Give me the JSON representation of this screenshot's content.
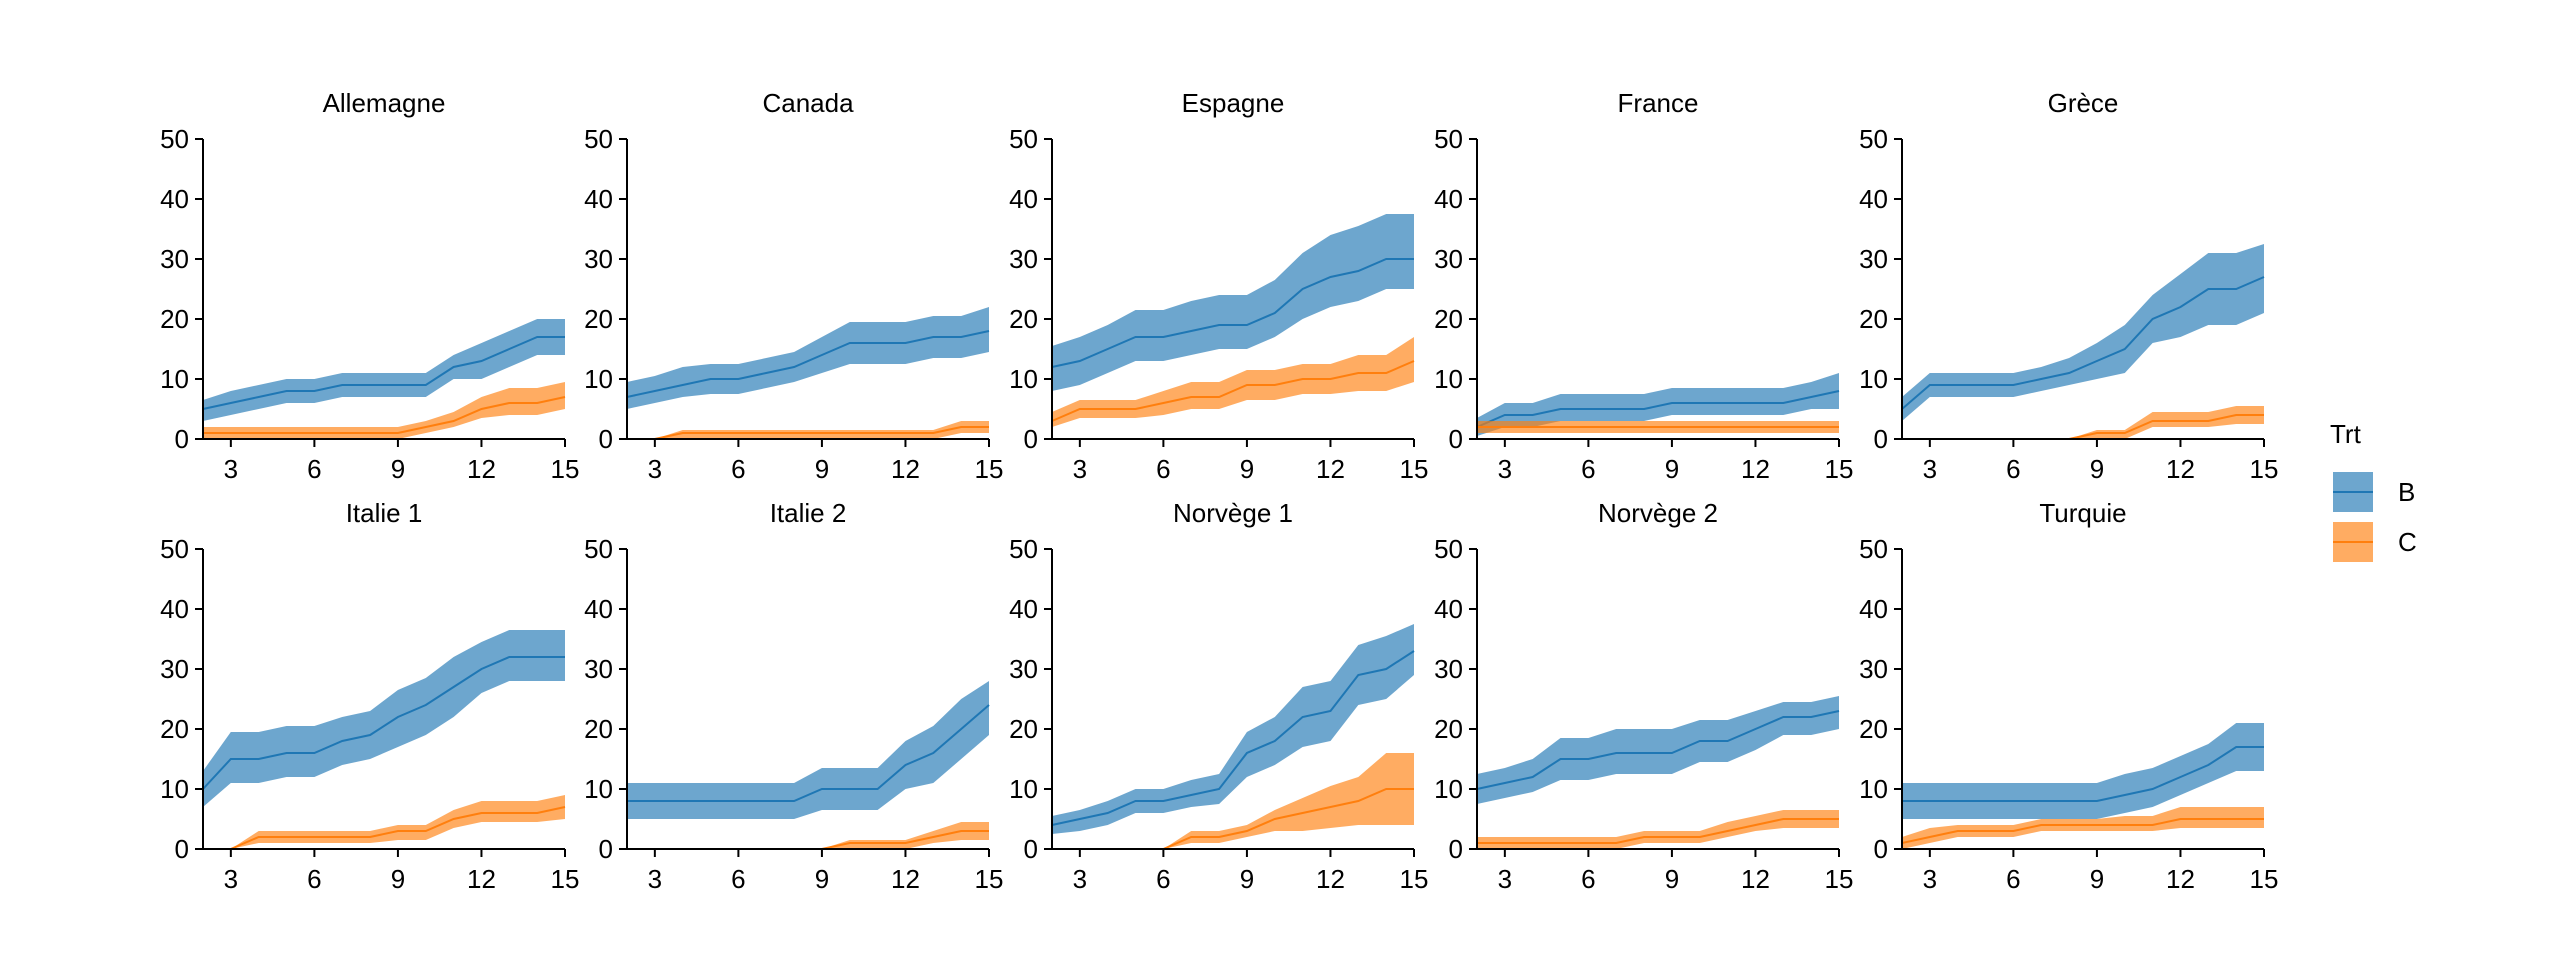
{
  "colors": {
    "B": "#1f77b4",
    "C": "#ff7f0e",
    "axis": "#000000"
  },
  "chart_data": {
    "type": "area",
    "legend": {
      "title": "Trt",
      "placement": "right",
      "entries": [
        "B",
        "C"
      ]
    },
    "xlim": [
      2,
      15
    ],
    "ylim": [
      0,
      50
    ],
    "x_ticks": [
      3,
      6,
      9,
      12,
      15
    ],
    "y_ticks": [
      0,
      10,
      20,
      30,
      40,
      50
    ],
    "grid": false,
    "x": [
      2,
      3,
      4,
      5,
      6,
      7,
      8,
      9,
      10,
      11,
      12,
      13,
      14,
      15
    ],
    "panels": [
      {
        "title": "Allemagne",
        "series": [
          {
            "name": "B",
            "mean": [
              5,
              6,
              7,
              8,
              8,
              9,
              9,
              9,
              9,
              12,
              13,
              15,
              17,
              17
            ],
            "low": [
              3,
              4,
              5,
              6,
              6,
              7,
              7,
              7,
              7,
              10,
              10,
              12,
              14,
              14
            ],
            "high": [
              6.5,
              8,
              9,
              10,
              10,
              11,
              11,
              11,
              11,
              14,
              16,
              18,
              20,
              20
            ]
          },
          {
            "name": "C",
            "mean": [
              1,
              1,
              1,
              1,
              1,
              1,
              1,
              1,
              2,
              3,
              5,
              6,
              6,
              7
            ],
            "low": [
              0,
              0,
              0,
              0,
              0,
              0,
              0,
              0,
              1,
              2,
              3.5,
              4,
              4,
              5
            ],
            "high": [
              2,
              2,
              2,
              2,
              2,
              2,
              2,
              2,
              3,
              4.5,
              7,
              8.5,
              8.5,
              9.5
            ]
          }
        ]
      },
      {
        "title": "Canada",
        "series": [
          {
            "name": "B",
            "mean": [
              7,
              8,
              9,
              10,
              10,
              11,
              12,
              14,
              16,
              16,
              16,
              17,
              17,
              18
            ],
            "low": [
              5,
              6,
              7,
              7.5,
              7.5,
              8.5,
              9.5,
              11,
              12.5,
              12.5,
              12.5,
              13.5,
              13.5,
              14.5
            ],
            "high": [
              9.5,
              10.5,
              12,
              12.5,
              12.5,
              13.5,
              14.5,
              17,
              19.5,
              19.5,
              19.5,
              20.5,
              20.5,
              22
            ]
          },
          {
            "name": "C",
            "mean": [
              null,
              0,
              1,
              1,
              1,
              1,
              1,
              1,
              1,
              1,
              1,
              1,
              2,
              2
            ],
            "low": [
              null,
              0,
              0,
              0,
              0,
              0,
              0,
              0,
              0,
              0,
              0,
              0,
              1,
              1
            ],
            "high": [
              null,
              0,
              1.5,
              1.5,
              1.5,
              1.5,
              1.5,
              1.5,
              1.5,
              1.5,
              1.5,
              1.5,
              3,
              3
            ]
          }
        ]
      },
      {
        "title": "Espagne",
        "series": [
          {
            "name": "B",
            "mean": [
              12,
              13,
              15,
              17,
              17,
              18,
              19,
              19,
              21,
              25,
              27,
              28,
              30,
              30
            ],
            "low": [
              8,
              9,
              11,
              13,
              13,
              14,
              15,
              15,
              17,
              20,
              22,
              23,
              25,
              25
            ],
            "high": [
              15.5,
              17,
              19,
              21.5,
              21.5,
              23,
              24,
              24,
              26.5,
              31,
              34,
              35.5,
              37.5,
              37.5
            ]
          },
          {
            "name": "C",
            "mean": [
              3,
              5,
              5,
              5,
              6,
              7,
              7,
              9,
              9,
              10,
              10,
              11,
              11,
              13
            ],
            "low": [
              2,
              3.5,
              3.5,
              3.5,
              4,
              5,
              5,
              6.5,
              6.5,
              7.5,
              7.5,
              8,
              8,
              9.5
            ],
            "high": [
              4.5,
              6.5,
              6.5,
              6.5,
              8,
              9.5,
              9.5,
              11.5,
              11.5,
              12.5,
              12.5,
              14,
              14,
              17
            ]
          }
        ]
      },
      {
        "title": "France",
        "series": [
          {
            "name": "B",
            "mean": [
              2,
              4,
              4,
              5,
              5,
              5,
              5,
              6,
              6,
              6,
              6,
              6,
              7,
              8
            ],
            "low": [
              0.5,
              2,
              2,
              3,
              3,
              3,
              3,
              4,
              4,
              4,
              4,
              4,
              5,
              5
            ],
            "high": [
              3.5,
              6,
              6,
              7.5,
              7.5,
              7.5,
              7.5,
              8.5,
              8.5,
              8.5,
              8.5,
              8.5,
              9.5,
              11
            ]
          },
          {
            "name": "C",
            "mean": [
              2,
              2,
              2,
              2,
              2,
              2,
              2,
              2,
              2,
              2,
              2,
              2,
              2,
              2
            ],
            "low": [
              1,
              1,
              1,
              1,
              1,
              1,
              1,
              1,
              1,
              1,
              1,
              1,
              1,
              1
            ],
            "high": [
              3,
              3,
              3,
              3,
              3,
              3,
              3,
              3,
              3,
              3,
              3,
              3,
              3,
              3
            ]
          }
        ]
      },
      {
        "title": "Grèce",
        "series": [
          {
            "name": "B",
            "mean": [
              5,
              9,
              9,
              9,
              9,
              10,
              11,
              13,
              15,
              20,
              22,
              25,
              25,
              27
            ],
            "low": [
              3,
              7,
              7,
              7,
              7,
              8,
              9,
              10,
              11,
              16,
              17,
              19,
              19,
              21
            ],
            "high": [
              7,
              11,
              11,
              11,
              11,
              12,
              13.5,
              16,
              19,
              24,
              27.5,
              31,
              31,
              32.5
            ]
          },
          {
            "name": "C",
            "mean": [
              null,
              null,
              null,
              null,
              null,
              null,
              0,
              1,
              1,
              3,
              3,
              3,
              4,
              4
            ],
            "low": [
              null,
              null,
              null,
              null,
              null,
              null,
              0,
              0,
              0,
              2,
              2,
              2,
              2.5,
              2.5
            ],
            "high": [
              null,
              null,
              null,
              null,
              null,
              null,
              0,
              1.5,
              1.5,
              4.5,
              4.5,
              4.5,
              5.5,
              5.5
            ]
          }
        ]
      },
      {
        "title": "Italie 1",
        "series": [
          {
            "name": "B",
            "mean": [
              10,
              15,
              15,
              16,
              16,
              18,
              19,
              22,
              24,
              27,
              30,
              32,
              32,
              32
            ],
            "low": [
              7,
              11,
              11,
              12,
              12,
              14,
              15,
              17,
              19,
              22,
              26,
              28,
              28,
              28
            ],
            "high": [
              13,
              19.5,
              19.5,
              20.5,
              20.5,
              22,
              23,
              26.5,
              28.5,
              32,
              34.5,
              36.5,
              36.5,
              36.5
            ]
          },
          {
            "name": "C",
            "mean": [
              null,
              0,
              2,
              2,
              2,
              2,
              2,
              3,
              3,
              5,
              6,
              6,
              6,
              7
            ],
            "low": [
              null,
              0,
              1,
              1,
              1,
              1,
              1,
              1.5,
              1.5,
              3.5,
              4.5,
              4.5,
              4.5,
              5
            ],
            "high": [
              null,
              0,
              3,
              3,
              3,
              3,
              3,
              4,
              4,
              6.5,
              8,
              8,
              8,
              9
            ]
          }
        ]
      },
      {
        "title": "Italie 2",
        "series": [
          {
            "name": "B",
            "mean": [
              8,
              8,
              8,
              8,
              8,
              8,
              8,
              10,
              10,
              10,
              14,
              16,
              20,
              24
            ],
            "low": [
              5,
              5,
              5,
              5,
              5,
              5,
              5,
              6.5,
              6.5,
              6.5,
              10,
              11,
              15,
              19
            ],
            "high": [
              11,
              11,
              11,
              11,
              11,
              11,
              11,
              13.5,
              13.5,
              13.5,
              18,
              20.5,
              25,
              28
            ]
          },
          {
            "name": "C",
            "mean": [
              null,
              0,
              0,
              0,
              0,
              0,
              0,
              0,
              1,
              1,
              1,
              2,
              3,
              3
            ],
            "low": [
              null,
              0,
              0,
              0,
              0,
              0,
              0,
              0,
              0,
              0,
              0,
              1,
              1.5,
              1.5
            ],
            "high": [
              null,
              0,
              0,
              0,
              0,
              0,
              0,
              0,
              1.5,
              1.5,
              1.5,
              3,
              4.5,
              4.5
            ]
          }
        ]
      },
      {
        "title": "Norvège 1",
        "series": [
          {
            "name": "B",
            "mean": [
              4,
              5,
              6,
              8,
              8,
              9,
              10,
              16,
              18,
              22,
              23,
              29,
              30,
              33
            ],
            "low": [
              2.5,
              3,
              4,
              6,
              6,
              7,
              7.5,
              12,
              14,
              17,
              18,
              24,
              25,
              29
            ],
            "high": [
              5.5,
              6.5,
              8,
              10,
              10,
              11.5,
              12.5,
              19.5,
              22,
              27,
              28,
              34,
              35.5,
              37.5
            ]
          },
          {
            "name": "C",
            "mean": [
              null,
              null,
              null,
              null,
              0,
              2,
              2,
              3,
              5,
              6,
              7,
              8,
              10,
              10
            ],
            "low": [
              null,
              null,
              null,
              null,
              0,
              1,
              1,
              2,
              3,
              3,
              3.5,
              4,
              4,
              4
            ],
            "high": [
              null,
              null,
              null,
              null,
              0,
              3,
              3,
              4,
              6.5,
              8.5,
              10.5,
              12,
              16,
              16
            ]
          }
        ]
      },
      {
        "title": "Norvège 2",
        "series": [
          {
            "name": "B",
            "mean": [
              10,
              11,
              12,
              15,
              15,
              16,
              16,
              16,
              18,
              18,
              20,
              22,
              22,
              23
            ],
            "low": [
              7.5,
              8.5,
              9.5,
              11.5,
              11.5,
              12.5,
              12.5,
              12.5,
              14.5,
              14.5,
              16.5,
              19,
              19,
              20
            ],
            "high": [
              12.5,
              13.5,
              15,
              18.5,
              18.5,
              20,
              20,
              20,
              21.5,
              21.5,
              23,
              24.5,
              24.5,
              25.5
            ]
          },
          {
            "name": "C",
            "mean": [
              1,
              1,
              1,
              1,
              1,
              1,
              2,
              2,
              2,
              3,
              4,
              5,
              5,
              5
            ],
            "low": [
              0,
              0,
              0,
              0,
              0,
              0,
              1,
              1,
              1,
              2,
              3,
              3.5,
              3.5,
              3.5
            ],
            "high": [
              2,
              2,
              2,
              2,
              2,
              2,
              3,
              3,
              3,
              4.5,
              5.5,
              6.5,
              6.5,
              6.5
            ]
          }
        ]
      },
      {
        "title": "Turquie",
        "series": [
          {
            "name": "B",
            "mean": [
              8,
              8,
              8,
              8,
              8,
              8,
              8,
              8,
              9,
              10,
              12,
              14,
              17,
              17
            ],
            "low": [
              5,
              5,
              5,
              5,
              5,
              5,
              5,
              5,
              6,
              7,
              9,
              11,
              13,
              13
            ],
            "high": [
              11,
              11,
              11,
              11,
              11,
              11,
              11,
              11,
              12.5,
              13.5,
              15.5,
              17.5,
              21,
              21
            ]
          },
          {
            "name": "C",
            "mean": [
              1,
              2,
              3,
              3,
              3,
              4,
              4,
              4,
              4,
              4,
              5,
              5,
              5,
              5
            ],
            "low": [
              0,
              1,
              2,
              2,
              2,
              3,
              3,
              3,
              3,
              3,
              3.5,
              3.5,
              3.5,
              3.5
            ],
            "high": [
              2,
              3.5,
              4,
              4,
              4,
              5,
              5,
              5,
              5.5,
              5.5,
              7,
              7,
              7,
              7
            ]
          }
        ]
      }
    ]
  }
}
